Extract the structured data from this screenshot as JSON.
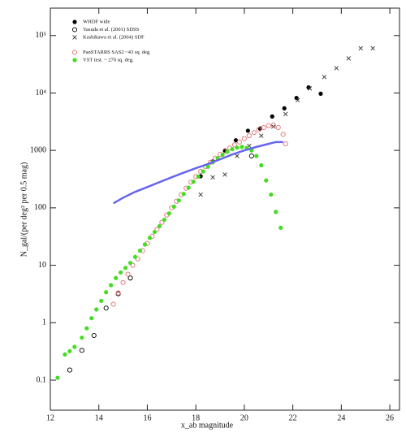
{
  "chart_data": {
    "type": "scatter",
    "x_label": "x_ab magnitude",
    "y_label": "N_gal/(per deg² per 0.5 mag)",
    "xlim": [
      12,
      26.4
    ],
    "ylim": [
      0.03,
      300000
    ],
    "y_scale": "log",
    "legend": "upper left",
    "xticks": [
      12,
      14,
      16,
      18,
      20,
      22,
      24,
      26
    ],
    "yticks": [
      0.1,
      1,
      10,
      100,
      1000,
      {
        "value": 10000,
        "label": "10⁴"
      },
      {
        "value": 100000,
        "label": "10⁵"
      }
    ],
    "series": [
      {
        "name": "WHDF wide",
        "color": "#000000",
        "marker": "filled-circle",
        "x": [
          18.2,
          18.7,
          19.2,
          19.65,
          20.15,
          20.65,
          21.15,
          21.65,
          22.15,
          22.65,
          23.15
        ],
        "values": [
          355,
          640,
          1000,
          1500,
          2200,
          2400,
          3900,
          5400,
          8200,
          12500,
          9700
        ]
      },
      {
        "name": "Yasuda et al. (2001) SDSS",
        "color": "#000000",
        "marker": "open-circle",
        "x": [
          12.8,
          13.3,
          13.8,
          14.3,
          14.8,
          15.3,
          20.3
        ],
        "values": [
          0.15,
          0.33,
          0.6,
          1.8,
          3.2,
          6,
          800
        ]
      },
      {
        "name": "Kashikawa et al. (2004) SDF",
        "color": "#333333",
        "marker": "cross",
        "x": [
          18.2,
          18.7,
          19.2,
          19.7,
          20.2,
          20.7,
          21.2,
          21.7,
          22.2,
          22.7,
          23.3,
          23.8,
          24.3,
          24.8,
          25.3
        ],
        "values": [
          170,
          340,
          380,
          800,
          1200,
          1800,
          2600,
          4300,
          7500,
          12000,
          19000,
          27000,
          40000,
          60000,
          60000
        ]
      },
      {
        "name": "PanSTARRS SAS2 ~43 sq. deg",
        "color": "#e07070",
        "marker": "open-circle",
        "x": [
          14.6,
          14.8,
          15.0,
          15.2,
          15.4,
          15.6,
          15.8,
          16.0,
          16.2,
          16.4,
          16.6,
          16.8,
          17.0,
          17.2,
          17.4,
          17.6,
          17.8,
          18.0,
          18.2,
          18.4,
          18.6,
          18.8,
          19.0,
          19.2,
          19.4,
          19.6,
          19.8,
          20.0,
          20.2,
          20.4,
          20.6,
          20.8,
          21.0,
          21.2,
          21.4,
          21.6,
          21.7
        ],
        "values": [
          2.1,
          3.3,
          5,
          7,
          10,
          13,
          18,
          24,
          32,
          42,
          56,
          75,
          100,
          130,
          170,
          220,
          280,
          350,
          430,
          520,
          620,
          730,
          850,
          980,
          1100,
          1250,
          1400,
          1600,
          1800,
          2050,
          2300,
          2500,
          2700,
          2750,
          2500,
          1900,
          1300
        ]
      },
      {
        "name": "VST test. ~ 270 sq. deg.",
        "color": "#44dd22",
        "marker": "filled-circle",
        "x": [
          12.3,
          12.6,
          12.8,
          13.0,
          13.3,
          13.5,
          13.7,
          13.9,
          14.1,
          14.3,
          14.5,
          14.7,
          14.9,
          15.1,
          15.3,
          15.5,
          15.7,
          15.9,
          16.1,
          16.3,
          16.5,
          16.7,
          16.9,
          17.1,
          17.3,
          17.5,
          17.7,
          17.9,
          18.1,
          18.3,
          18.5,
          18.7,
          18.9,
          19.1,
          19.3,
          19.5,
          19.7,
          19.9,
          20.1,
          20.3,
          20.5,
          20.7,
          20.9,
          21.1,
          21.3,
          21.5
        ],
        "values": [
          0.11,
          0.28,
          0.32,
          0.38,
          0.55,
          0.8,
          1.2,
          1.7,
          2.4,
          3.4,
          4.5,
          6,
          7.5,
          9,
          11,
          14,
          18,
          23,
          30,
          38,
          48,
          62,
          80,
          105,
          135,
          175,
          225,
          285,
          350,
          430,
          520,
          620,
          730,
          840,
          950,
          1050,
          1120,
          1150,
          1100,
          1000,
          800,
          550,
          300,
          170,
          85,
          45
        ]
      },
      {
        "color": "#6666ee",
        "marker": "line",
        "x": [
          14.6,
          15.0,
          15.5,
          16.0,
          16.5,
          17.0,
          17.5,
          18.0,
          18.5,
          19.0,
          19.5,
          20.0,
          20.5,
          21.0,
          21.3,
          21.6
        ],
        "values": [
          120,
          150,
          190,
          230,
          280,
          340,
          410,
          490,
          580,
          700,
          850,
          1000,
          1150,
          1300,
          1400,
          1400
        ]
      }
    ]
  }
}
